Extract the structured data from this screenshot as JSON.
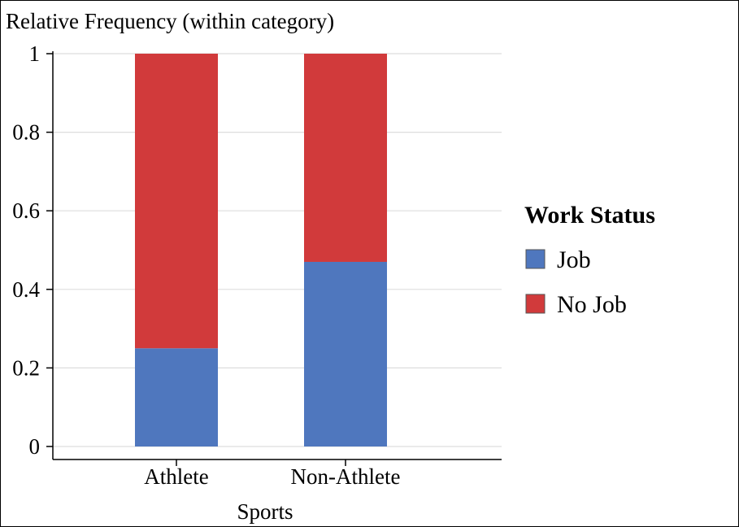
{
  "chart_data": {
    "type": "bar",
    "stacked": true,
    "title": "",
    "ylabel": "Relative Frequency (within category)",
    "xlabel": "Sports",
    "categories": [
      "Athlete",
      "Non-Athlete"
    ],
    "series": [
      {
        "name": "Job",
        "values": [
          0.25,
          0.47
        ],
        "color": "#4f77be"
      },
      {
        "name": "No Job",
        "values": [
          0.75,
          0.53
        ],
        "color": "#d13a3b"
      }
    ],
    "ylim": [
      0,
      1
    ],
    "yticks": [
      "0",
      "0.2",
      "0.4",
      "0.6",
      "0.8",
      "1"
    ],
    "grid": true,
    "legend": {
      "title": "Work Status",
      "placement": "right"
    }
  }
}
